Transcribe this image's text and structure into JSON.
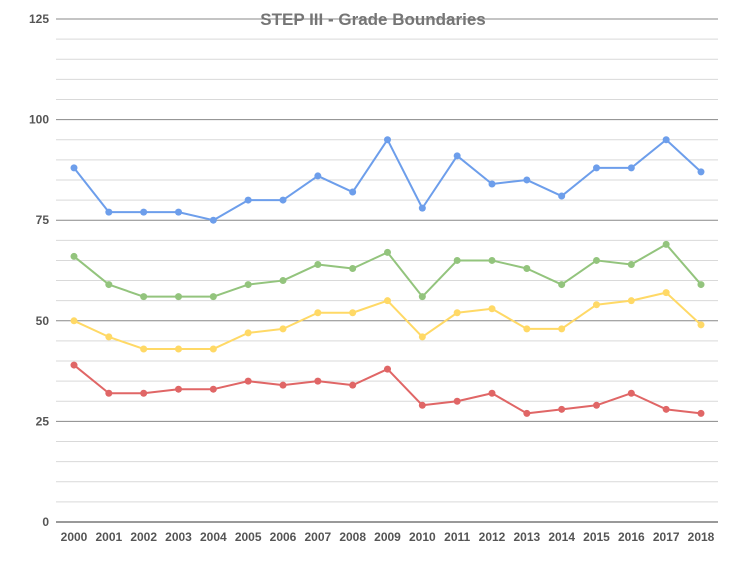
{
  "chart_data": {
    "type": "line",
    "title": "STEP III - Grade Boundaries",
    "xlabel": "",
    "ylabel": "",
    "x": [
      "2000",
      "2001",
      "2002",
      "2003",
      "2004",
      "2005",
      "2006",
      "2007",
      "2008",
      "2009",
      "2010",
      "2011",
      "2012",
      "2013",
      "2014",
      "2015",
      "2016",
      "2017",
      "2018"
    ],
    "ylim": [
      0,
      125
    ],
    "yticks": [
      "0",
      "25",
      "50",
      "75",
      "100",
      "125"
    ],
    "grid": true,
    "legend": "none",
    "series": [
      {
        "color": "#6d9eeb",
        "values": [
          88,
          77,
          77,
          77,
          75,
          80,
          80,
          86,
          82,
          95,
          78,
          91,
          84,
          85,
          81,
          88,
          88,
          95,
          87
        ]
      },
      {
        "color": "#93c47d",
        "values": [
          66,
          59,
          56,
          56,
          56,
          59,
          60,
          64,
          63,
          67,
          56,
          65,
          65,
          63,
          59,
          65,
          64,
          69,
          59
        ]
      },
      {
        "color": "#ffd966",
        "values": [
          50,
          46,
          43,
          43,
          43,
          47,
          48,
          52,
          52,
          55,
          46,
          52,
          53,
          48,
          48,
          54,
          55,
          57,
          49
        ]
      },
      {
        "color": "#e06666",
        "values": [
          39,
          32,
          32,
          33,
          33,
          35,
          34,
          35,
          34,
          38,
          29,
          30,
          32,
          27,
          28,
          29,
          32,
          28,
          27
        ]
      }
    ]
  }
}
